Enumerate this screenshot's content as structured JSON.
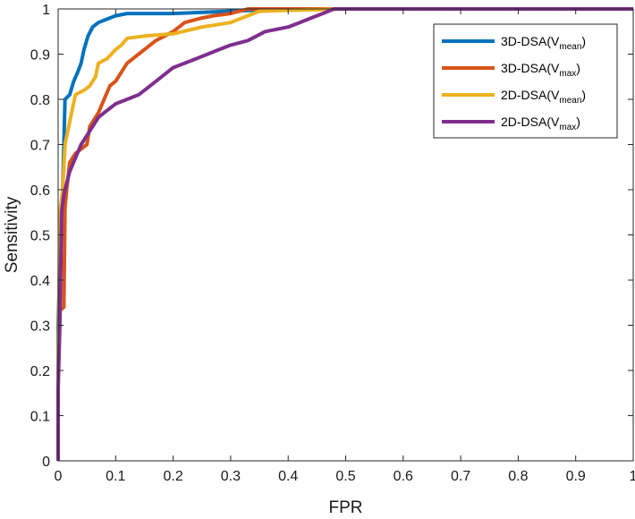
{
  "chart_data": {
    "type": "line",
    "xlabel": "FPR",
    "ylabel": "Sensitivity",
    "xlim": [
      0,
      1
    ],
    "ylim": [
      0,
      1
    ],
    "x_ticks": [
      "0",
      "0.1",
      "0.2",
      "0.3",
      "0.4",
      "0.5",
      "0.6",
      "0.7",
      "0.8",
      "0.9",
      "1"
    ],
    "y_ticks": [
      "0",
      "0.1",
      "0.2",
      "0.3",
      "0.4",
      "0.5",
      "0.6",
      "0.7",
      "0.8",
      "0.9",
      "1"
    ],
    "grid": false,
    "legend_position": "top-right",
    "series": [
      {
        "name": "3D-DSA(V_mean)",
        "label_main": "3D-DSA(V",
        "label_sub": "mean",
        "label_end": ")",
        "color": "#0072BD",
        "points": [
          [
            0,
            0
          ],
          [
            0,
            0.3
          ],
          [
            0.005,
            0.52
          ],
          [
            0.008,
            0.6
          ],
          [
            0.012,
            0.8
          ],
          [
            0.02,
            0.81
          ],
          [
            0.027,
            0.84
          ],
          [
            0.034,
            0.86
          ],
          [
            0.04,
            0.88
          ],
          [
            0.045,
            0.91
          ],
          [
            0.052,
            0.94
          ],
          [
            0.06,
            0.96
          ],
          [
            0.07,
            0.97
          ],
          [
            0.08,
            0.975
          ],
          [
            0.09,
            0.98
          ],
          [
            0.1,
            0.985
          ],
          [
            0.12,
            0.99
          ],
          [
            0.2,
            0.99
          ],
          [
            0.3,
            0.995
          ],
          [
            0.4,
            1
          ],
          [
            1,
            1
          ]
        ]
      },
      {
        "name": "3D-DSA(V_max)",
        "label_main": "3D-DSA(V",
        "label_sub": "max",
        "label_end": ")",
        "color": "#D95319",
        "points": [
          [
            0,
            0.33
          ],
          [
            0.01,
            0.34
          ],
          [
            0.012,
            0.56
          ],
          [
            0.015,
            0.6
          ],
          [
            0.02,
            0.66
          ],
          [
            0.03,
            0.68
          ],
          [
            0.04,
            0.69
          ],
          [
            0.05,
            0.7
          ],
          [
            0.055,
            0.74
          ],
          [
            0.07,
            0.77
          ],
          [
            0.08,
            0.8
          ],
          [
            0.09,
            0.83
          ],
          [
            0.1,
            0.84
          ],
          [
            0.11,
            0.86
          ],
          [
            0.12,
            0.88
          ],
          [
            0.13,
            0.89
          ],
          [
            0.14,
            0.9
          ],
          [
            0.15,
            0.91
          ],
          [
            0.17,
            0.93
          ],
          [
            0.2,
            0.95
          ],
          [
            0.22,
            0.97
          ],
          [
            0.25,
            0.98
          ],
          [
            0.27,
            0.985
          ],
          [
            0.3,
            0.99
          ],
          [
            0.33,
            1
          ],
          [
            1,
            1
          ]
        ]
      },
      {
        "name": "2D-DSA(V_mean)",
        "label_main": "2D-DSA(V",
        "label_sub": "mean",
        "label_end": ")",
        "color": "#EDB120",
        "points": [
          [
            0,
            0
          ],
          [
            0,
            0.16
          ],
          [
            0.003,
            0.55
          ],
          [
            0.008,
            0.6
          ],
          [
            0.012,
            0.7
          ],
          [
            0.02,
            0.75
          ],
          [
            0.03,
            0.81
          ],
          [
            0.045,
            0.82
          ],
          [
            0.055,
            0.83
          ],
          [
            0.065,
            0.85
          ],
          [
            0.07,
            0.88
          ],
          [
            0.085,
            0.89
          ],
          [
            0.1,
            0.91
          ],
          [
            0.11,
            0.92
          ],
          [
            0.12,
            0.935
          ],
          [
            0.15,
            0.94
          ],
          [
            0.2,
            0.945
          ],
          [
            0.25,
            0.96
          ],
          [
            0.3,
            0.97
          ],
          [
            0.35,
            0.995
          ],
          [
            0.4,
            0.997
          ],
          [
            0.5,
            1
          ],
          [
            1,
            1
          ]
        ]
      },
      {
        "name": "2D-DSA(V_max)",
        "label_main": "2D-DSA(V",
        "label_sub": "max",
        "label_end": ")",
        "color": "#7E2F8E",
        "points": [
          [
            0,
            0
          ],
          [
            0,
            0.16
          ],
          [
            0.003,
            0.3
          ],
          [
            0.006,
            0.55
          ],
          [
            0.01,
            0.59
          ],
          [
            0.02,
            0.64
          ],
          [
            0.03,
            0.67
          ],
          [
            0.04,
            0.7
          ],
          [
            0.05,
            0.72
          ],
          [
            0.06,
            0.74
          ],
          [
            0.07,
            0.76
          ],
          [
            0.08,
            0.77
          ],
          [
            0.1,
            0.79
          ],
          [
            0.12,
            0.8
          ],
          [
            0.14,
            0.81
          ],
          [
            0.16,
            0.83
          ],
          [
            0.18,
            0.85
          ],
          [
            0.2,
            0.87
          ],
          [
            0.22,
            0.88
          ],
          [
            0.24,
            0.89
          ],
          [
            0.26,
            0.9
          ],
          [
            0.28,
            0.91
          ],
          [
            0.3,
            0.92
          ],
          [
            0.33,
            0.93
          ],
          [
            0.36,
            0.95
          ],
          [
            0.4,
            0.96
          ],
          [
            0.42,
            0.97
          ],
          [
            0.44,
            0.98
          ],
          [
            0.46,
            0.99
          ],
          [
            0.48,
            1
          ],
          [
            1,
            1
          ]
        ]
      }
    ]
  }
}
